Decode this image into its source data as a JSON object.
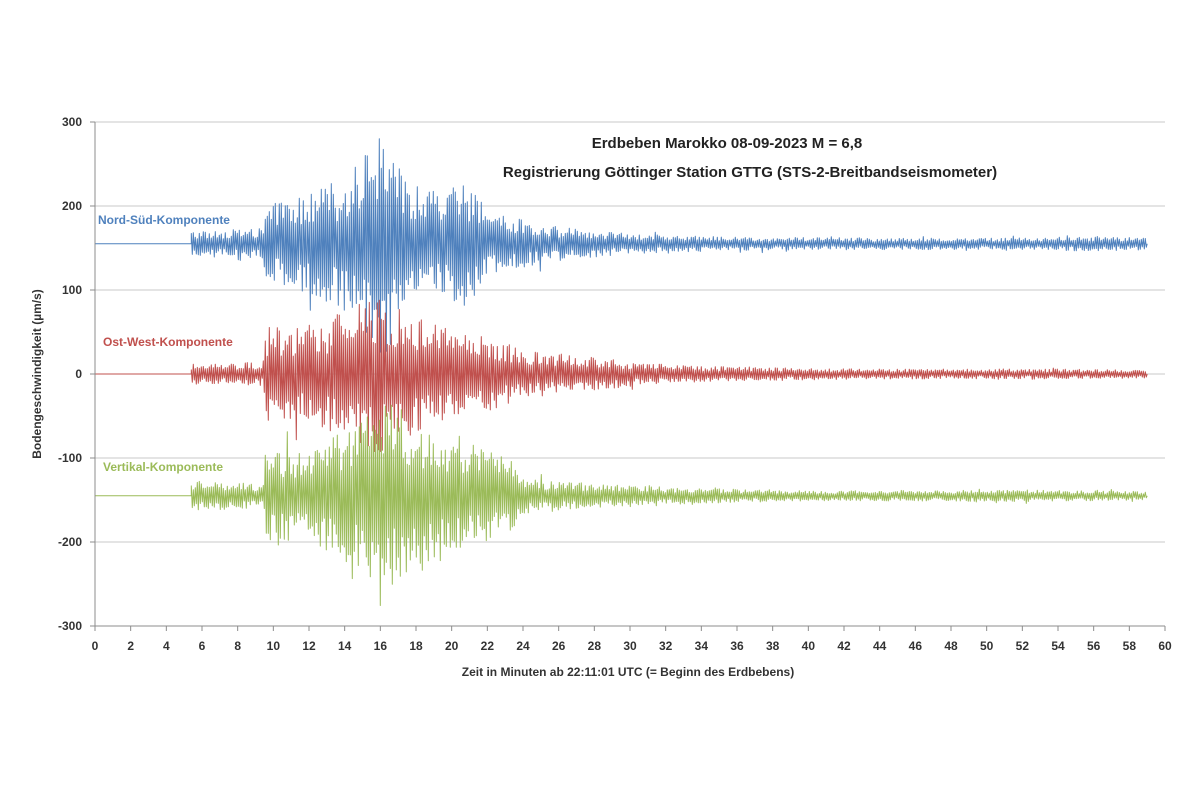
{
  "chart_data": {
    "type": "line",
    "title": "Erdbeben Marokko 08-09-2023  M = 6,8",
    "subtitle": "Registrierung Göttinger Station GTTG (STS-2-Breitbandseismometer)",
    "xlabel": "Zeit in Minuten ab 22:11:01 UTC (= Beginn des Erdbebens)",
    "ylabel": "Bodengeschwindigkeit  (µm/s)",
    "xlim": [
      0,
      60
    ],
    "ylim": [
      -300,
      300
    ],
    "x_ticks": [
      "0",
      "2",
      "4",
      "6",
      "8",
      "10",
      "12",
      "14",
      "16",
      "18",
      "20",
      "22",
      "24",
      "26",
      "28",
      "30",
      "32",
      "34",
      "36",
      "38",
      "40",
      "42",
      "44",
      "46",
      "48",
      "50",
      "52",
      "54",
      "56",
      "58",
      "60"
    ],
    "y_ticks": [
      "300",
      "200",
      "100",
      "0",
      "-100",
      "-200",
      "-300"
    ],
    "grid": true,
    "legend": "none",
    "series": [
      {
        "name": "Nord-Süd-Komponente",
        "color": "#4f81bd",
        "baseline": 155,
        "onset_min": 5.4,
        "end_min": 59,
        "envelope": [
          [
            0,
            0
          ],
          [
            5.3,
            0
          ],
          [
            5.4,
            15
          ],
          [
            9.4,
            18
          ],
          [
            9.6,
            45
          ],
          [
            12,
            60
          ],
          [
            14,
            80
          ],
          [
            16.3,
            140
          ],
          [
            17,
            90
          ],
          [
            19,
            65
          ],
          [
            21,
            75
          ],
          [
            22,
            40
          ],
          [
            24,
            28
          ],
          [
            26,
            20
          ],
          [
            28,
            16
          ],
          [
            30,
            12
          ],
          [
            32,
            10
          ],
          [
            36,
            8
          ],
          [
            44,
            7
          ],
          [
            52,
            7
          ],
          [
            56,
            9
          ],
          [
            59,
            7
          ]
        ]
      },
      {
        "name": "Ost-West-Komponente",
        "color": "#c0504d",
        "baseline": 0,
        "onset_min": 5.4,
        "end_min": 59,
        "envelope": [
          [
            0,
            0
          ],
          [
            5.3,
            0
          ],
          [
            5.4,
            12
          ],
          [
            9.4,
            14
          ],
          [
            9.6,
            55
          ],
          [
            12,
            60
          ],
          [
            14,
            75
          ],
          [
            16.3,
            100
          ],
          [
            18,
            70
          ],
          [
            20,
            55
          ],
          [
            22,
            45
          ],
          [
            24,
            30
          ],
          [
            26,
            24
          ],
          [
            28,
            20
          ],
          [
            30,
            15
          ],
          [
            34,
            9
          ],
          [
            44,
            6
          ],
          [
            52,
            6
          ],
          [
            59,
            5
          ]
        ]
      },
      {
        "name": "Vertikal-Komponente",
        "color": "#9bbb59",
        "baseline": -145,
        "onset_min": 5.4,
        "end_min": 59,
        "envelope": [
          [
            0,
            0
          ],
          [
            5.3,
            0
          ],
          [
            5.4,
            18
          ],
          [
            9.4,
            14
          ],
          [
            9.6,
            60
          ],
          [
            12,
            55
          ],
          [
            14,
            80
          ],
          [
            16.5,
            110
          ],
          [
            18,
            95
          ],
          [
            20,
            70
          ],
          [
            22,
            55
          ],
          [
            23.5,
            40
          ],
          [
            24,
            22
          ],
          [
            26,
            18
          ],
          [
            28,
            14
          ],
          [
            30,
            12
          ],
          [
            34,
            9
          ],
          [
            40,
            6
          ],
          [
            44,
            6
          ],
          [
            52,
            7
          ],
          [
            59,
            5
          ]
        ]
      }
    ]
  }
}
